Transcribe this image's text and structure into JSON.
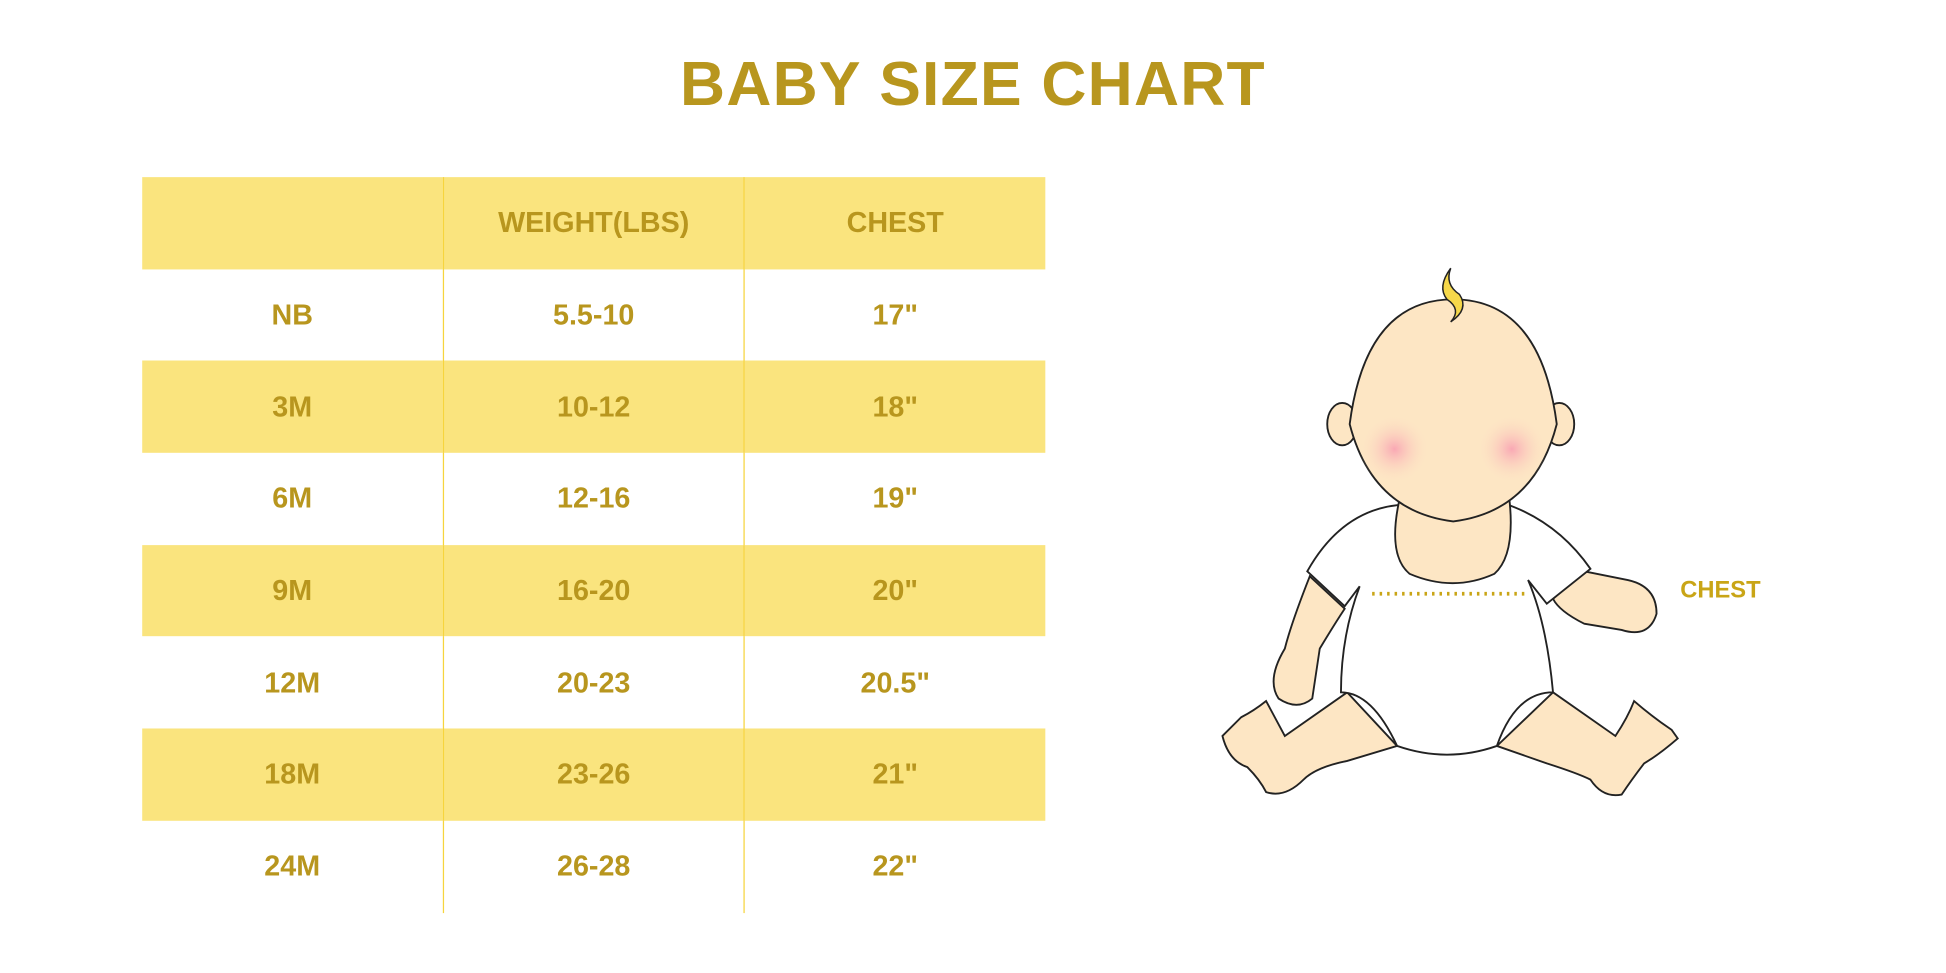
{
  "title": "BABY SIZE CHART",
  "table": {
    "headers": [
      "",
      "WEIGHT(LBS)",
      "CHEST"
    ],
    "rows": [
      [
        "NB",
        "5.5-10",
        "17\""
      ],
      [
        "3M",
        "10-12",
        "18\""
      ],
      [
        "6M",
        "12-16",
        "19\""
      ],
      [
        "9M",
        "16-20",
        "20\""
      ],
      [
        "12M",
        "20-23",
        "20.5\""
      ],
      [
        "18M",
        "23-26",
        "21\""
      ],
      [
        "24M",
        "26-28",
        "22\""
      ]
    ]
  },
  "illustration": {
    "measure_label": "CHEST"
  },
  "colors": {
    "text": "#B8961E",
    "band": "#FAE47E",
    "divider": "#F6D43E",
    "skin": "#FDE6C4"
  }
}
